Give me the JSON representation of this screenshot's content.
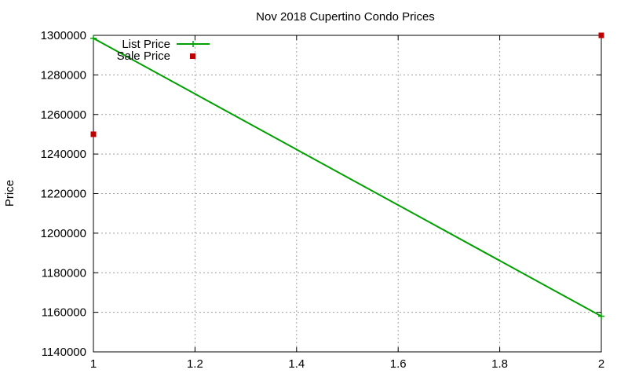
{
  "chart_data": {
    "type": "line",
    "title": "Nov 2018 Cupertino Condo Prices",
    "xlabel": "",
    "ylabel": "Price",
    "xlim": [
      1,
      2
    ],
    "ylim": [
      1140000,
      1300000
    ],
    "x_ticks": [
      "1",
      "1.2",
      "1.4",
      "1.6",
      "1.8",
      "2"
    ],
    "y_ticks": [
      "1140000",
      "1160000",
      "1180000",
      "1200000",
      "1220000",
      "1240000",
      "1260000",
      "1280000",
      "1300000"
    ],
    "grid": true,
    "legend_position": "top-left",
    "series": [
      {
        "name": "List Price",
        "style": "linespoints",
        "color": "#00a000",
        "x": [
          1,
          2
        ],
        "values": [
          1298500,
          1158000
        ]
      },
      {
        "name": "Sale Price",
        "style": "points",
        "color": "#c00000",
        "x": [
          1,
          2
        ],
        "values": [
          1250000,
          1300000
        ]
      }
    ]
  }
}
